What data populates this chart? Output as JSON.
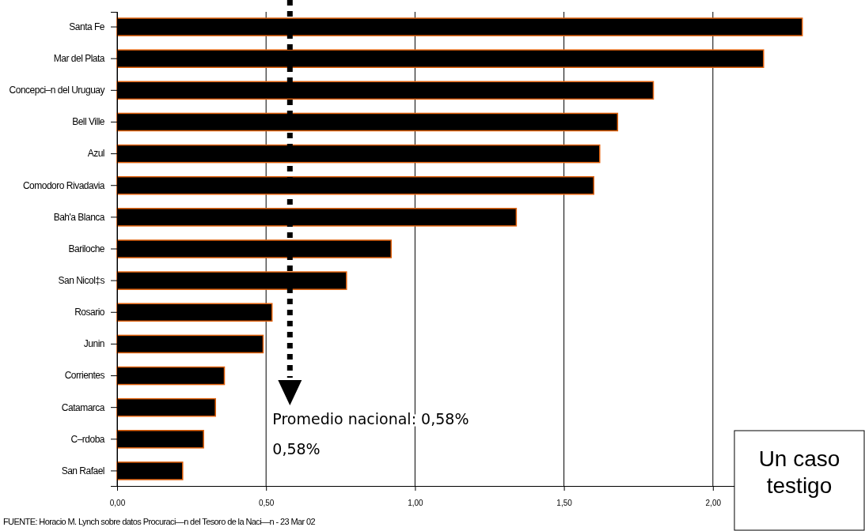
{
  "chart_data": {
    "type": "bar",
    "orientation": "horizontal",
    "categories": [
      "Santa Fe",
      "Mar del Plata",
      "Concepci–n del Uruguay",
      "Bell Ville",
      "Azul",
      "Comodoro Rivadavia",
      "Bah'a Blanca",
      "Bariloche",
      "San Nicol‡s",
      "Rosario",
      "Junin",
      "Corrientes",
      "Catamarca",
      "C–rdoba",
      "San Rafael"
    ],
    "values": [
      2.3,
      2.17,
      1.8,
      1.68,
      1.62,
      1.6,
      1.34,
      0.92,
      0.77,
      0.52,
      0.49,
      0.36,
      0.33,
      0.29,
      0.22
    ],
    "color": "#000000",
    "xlim": [
      0,
      2.5
    ],
    "xticks": [
      {
        "value": 0,
        "label": "0,00"
      },
      {
        "value": 0.5,
        "label": "0,50"
      },
      {
        "value": 1,
        "label": "1,00"
      },
      {
        "value": 1.5,
        "label": "1,50"
      },
      {
        "value": 2,
        "label": "2,00"
      }
    ],
    "grid": "x",
    "ref_lines": [
      {
        "axis": "x",
        "value": 0.58,
        "label": "Promedio nacional: 0,58%",
        "line_style": "dotted",
        "color": "#000000"
      }
    ],
    "annotations": [
      "0,58%",
      "Un caso testigo",
      "FUENTE: Horacio M. Lynch sobre datos Procuraci—n del Tesoro de la Naci—n - 23 Mar 02"
    ]
  }
}
